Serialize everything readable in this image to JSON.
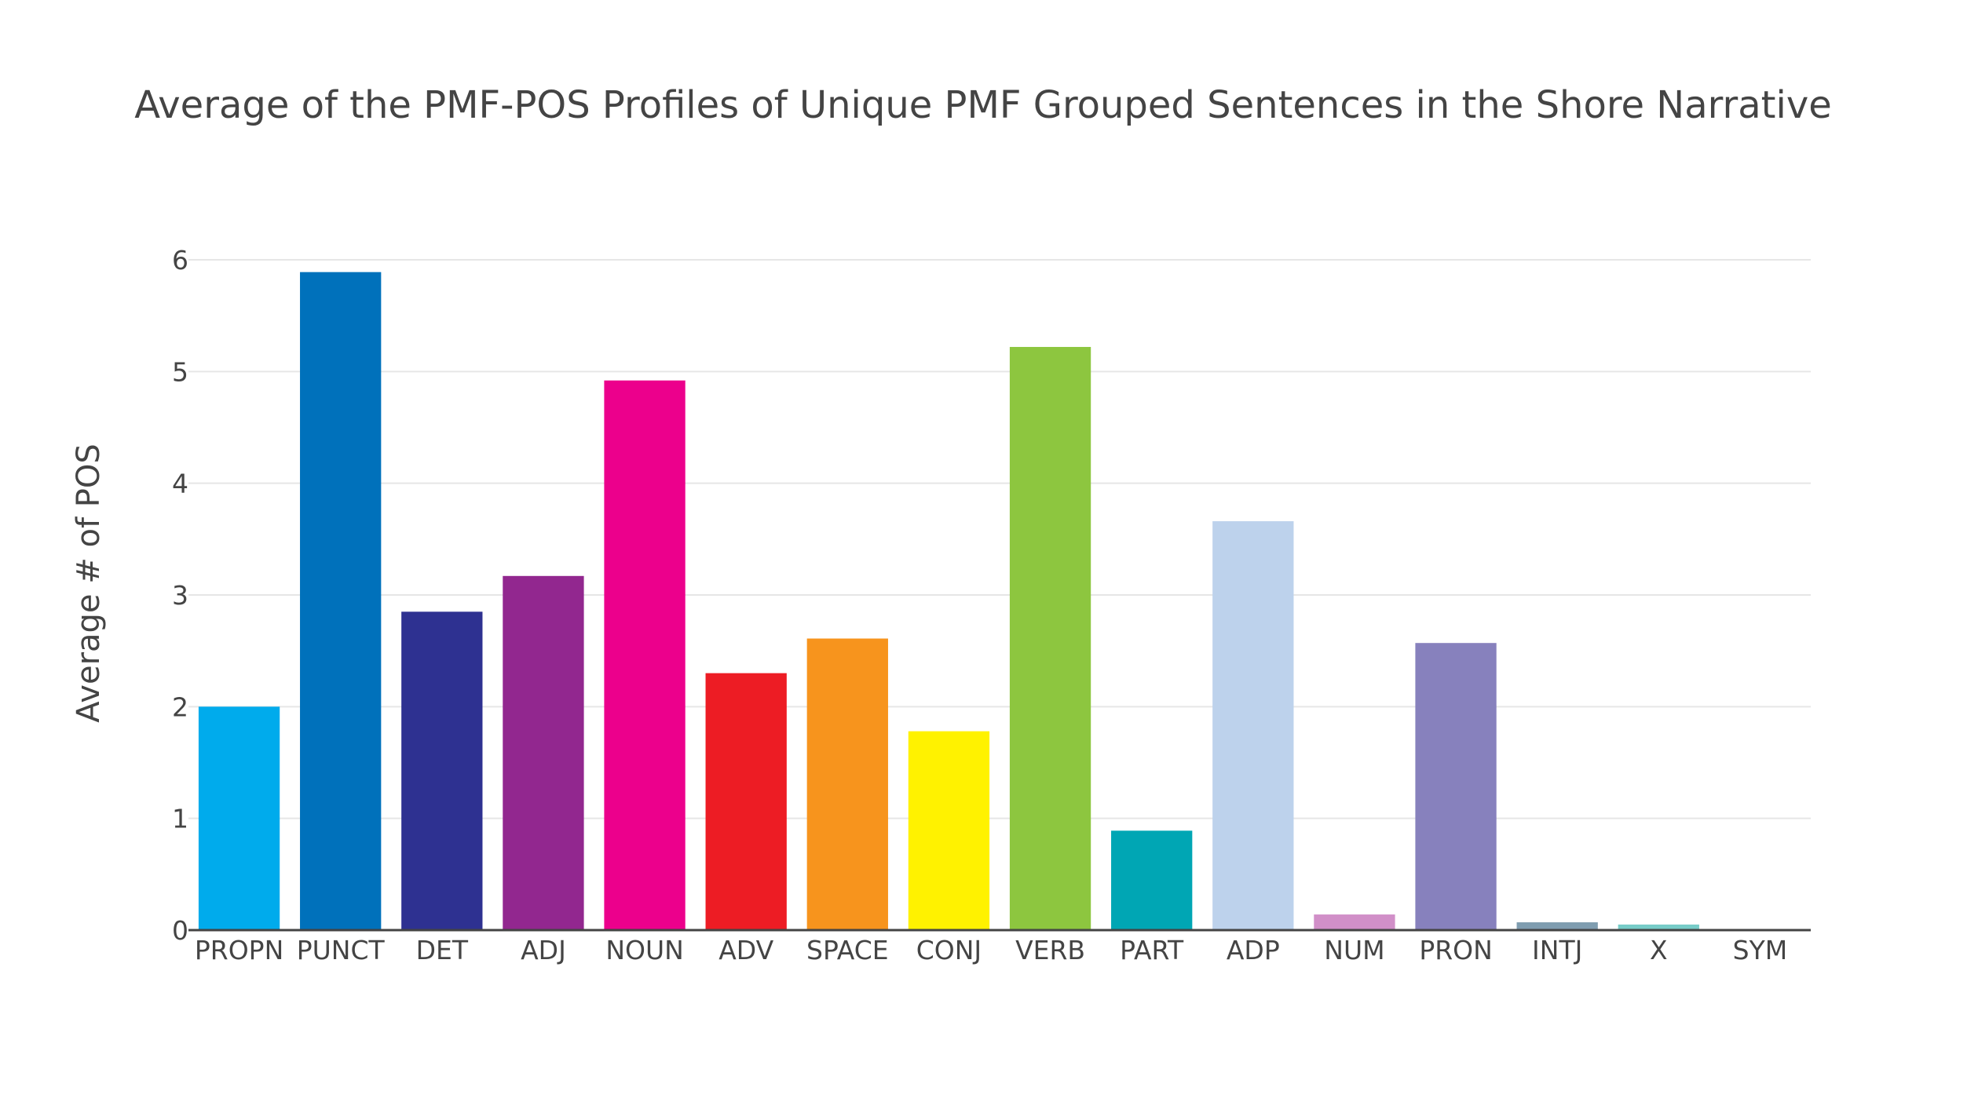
{
  "chart_data": {
    "type": "bar",
    "title": "Average of the PMF-POS Profiles of Unique PMF Grouped Sentences in the Shore Narrative",
    "xlabel": "",
    "ylabel": "Average # of POS",
    "ylim": [
      0,
      6
    ],
    "yticks": [
      0,
      1,
      2,
      3,
      4,
      5,
      6
    ],
    "grid": true,
    "legend": "none",
    "categories": [
      "PROPN",
      "PUNCT",
      "DET",
      "ADJ",
      "NOUN",
      "ADV",
      "SPACE",
      "CONJ",
      "VERB",
      "PART",
      "ADP",
      "NUM",
      "PRON",
      "INTJ",
      "X",
      "SYM"
    ],
    "values": [
      2.0,
      5.89,
      2.85,
      3.17,
      4.92,
      2.3,
      2.61,
      1.78,
      5.22,
      0.89,
      3.66,
      0.14,
      2.57,
      0.07,
      0.05,
      0.0
    ],
    "colors": [
      "#00ABEC",
      "#0071BB",
      "#2E3191",
      "#92278F",
      "#EC008C",
      "#ED1C24",
      "#F7941D",
      "#FFF200",
      "#8DC63F",
      "#00A6B4",
      "#BDD2EC",
      "#D18FC8",
      "#8781BD",
      "#7F9DB0",
      "#77CCC8",
      "#3D3D3D"
    ]
  }
}
